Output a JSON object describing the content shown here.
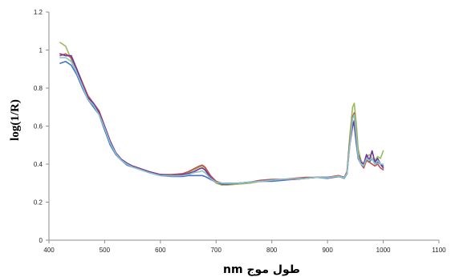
{
  "chart_data": {
    "type": "line",
    "title": "",
    "xlabel": "طول موج nm",
    "ylabel": "log(1/R)",
    "xlim": [
      400,
      1100
    ],
    "ylim": [
      0,
      1.2
    ],
    "x_ticks": [
      400,
      500,
      600,
      700,
      800,
      900,
      1000,
      1100
    ],
    "y_ticks": [
      0,
      0.2,
      0.4,
      0.6,
      0.8,
      1,
      1.2
    ],
    "x_tick_labels": [
      "400",
      "500",
      "600",
      "700",
      "800",
      "900",
      "1000",
      "1100"
    ],
    "y_tick_labels": [
      "0",
      "0.2",
      "0.4",
      "0.6",
      "0.8",
      "1",
      "1.2"
    ],
    "grid": false,
    "legend": "none",
    "series": [
      {
        "color": "#9bbb59",
        "x": [
          420,
          430,
          440,
          450,
          460,
          470,
          480,
          490,
          500,
          510,
          520,
          530,
          540,
          550,
          560,
          570,
          580,
          600,
          620,
          640,
          650,
          660,
          670,
          675,
          680,
          690,
          700,
          710,
          720,
          740,
          760,
          780,
          800,
          820,
          840,
          860,
          880,
          900,
          910,
          920,
          930,
          935,
          940,
          945,
          948,
          952,
          955,
          960,
          965,
          970,
          975,
          980,
          985,
          990,
          995,
          1000
        ],
        "y": [
          1.04,
          1.02,
          0.95,
          0.88,
          0.81,
          0.74,
          0.71,
          0.66,
          0.58,
          0.51,
          0.46,
          0.42,
          0.4,
          0.385,
          0.375,
          0.365,
          0.36,
          0.345,
          0.34,
          0.345,
          0.355,
          0.37,
          0.385,
          0.39,
          0.38,
          0.33,
          0.3,
          0.29,
          0.29,
          0.295,
          0.3,
          0.31,
          0.315,
          0.32,
          0.32,
          0.325,
          0.33,
          0.33,
          0.335,
          0.34,
          0.33,
          0.36,
          0.55,
          0.7,
          0.72,
          0.6,
          0.48,
          0.42,
          0.4,
          0.44,
          0.45,
          0.43,
          0.42,
          0.44,
          0.43,
          0.47
        ]
      },
      {
        "color": "#4472c4",
        "x": [
          420,
          430,
          440,
          450,
          460,
          470,
          480,
          490,
          500,
          510,
          520,
          530,
          540,
          550,
          560,
          570,
          580,
          600,
          620,
          640,
          650,
          660,
          670,
          675,
          680,
          690,
          700,
          710,
          720,
          740,
          760,
          780,
          800,
          820,
          840,
          860,
          880,
          900,
          910,
          920,
          930,
          935,
          940,
          945,
          948,
          952,
          955,
          960,
          965,
          970,
          975,
          980,
          985,
          990,
          995,
          1000
        ],
        "y": [
          0.93,
          0.94,
          0.92,
          0.87,
          0.8,
          0.74,
          0.7,
          0.66,
          0.58,
          0.5,
          0.45,
          0.42,
          0.395,
          0.385,
          0.375,
          0.365,
          0.355,
          0.34,
          0.335,
          0.335,
          0.34,
          0.34,
          0.34,
          0.34,
          0.335,
          0.32,
          0.305,
          0.3,
          0.3,
          0.3,
          0.305,
          0.31,
          0.31,
          0.315,
          0.32,
          0.325,
          0.33,
          0.325,
          0.33,
          0.335,
          0.325,
          0.35,
          0.52,
          0.62,
          0.6,
          0.5,
          0.43,
          0.4,
          0.39,
          0.42,
          0.41,
          0.43,
          0.4,
          0.41,
          0.4,
          0.39
        ]
      },
      {
        "color": "#c0504d",
        "x": [
          420,
          430,
          440,
          450,
          460,
          470,
          480,
          490,
          500,
          510,
          520,
          530,
          540,
          550,
          560,
          570,
          580,
          600,
          620,
          640,
          650,
          660,
          670,
          675,
          680,
          690,
          700,
          710,
          720,
          740,
          760,
          780,
          800,
          820,
          840,
          860,
          880,
          900,
          910,
          920,
          930,
          935,
          940,
          945,
          948,
          952,
          955,
          960,
          965,
          970,
          975,
          980,
          985,
          990,
          995,
          1000
        ],
        "y": [
          0.97,
          0.98,
          0.96,
          0.9,
          0.83,
          0.76,
          0.72,
          0.68,
          0.6,
          0.52,
          0.46,
          0.425,
          0.405,
          0.39,
          0.38,
          0.37,
          0.36,
          0.345,
          0.345,
          0.35,
          0.36,
          0.375,
          0.39,
          0.395,
          0.385,
          0.34,
          0.31,
          0.3,
          0.295,
          0.3,
          0.305,
          0.315,
          0.32,
          0.32,
          0.325,
          0.33,
          0.33,
          0.33,
          0.335,
          0.34,
          0.33,
          0.36,
          0.52,
          0.65,
          0.67,
          0.55,
          0.44,
          0.4,
          0.38,
          0.42,
          0.41,
          0.4,
          0.39,
          0.4,
          0.38,
          0.37
        ]
      },
      {
        "color": "#7030a0",
        "x": [
          420,
          430,
          440,
          450,
          460,
          470,
          480,
          490,
          500,
          510,
          520,
          530,
          540,
          550,
          560,
          570,
          580,
          600,
          620,
          640,
          650,
          660,
          670,
          675,
          680,
          690,
          700,
          710,
          720,
          740,
          760,
          780,
          800,
          820,
          840,
          860,
          880,
          900,
          910,
          920,
          930,
          935,
          940,
          945,
          948,
          952,
          955,
          960,
          965,
          970,
          975,
          980,
          985,
          990,
          995,
          1000
        ],
        "y": [
          0.98,
          0.97,
          0.97,
          0.9,
          0.82,
          0.75,
          0.72,
          0.67,
          0.6,
          0.52,
          0.46,
          0.425,
          0.405,
          0.39,
          0.38,
          0.37,
          0.36,
          0.345,
          0.34,
          0.345,
          0.35,
          0.36,
          0.375,
          0.38,
          0.37,
          0.33,
          0.305,
          0.295,
          0.295,
          0.3,
          0.305,
          0.31,
          0.315,
          0.32,
          0.32,
          0.325,
          0.33,
          0.33,
          0.33,
          0.335,
          0.33,
          0.35,
          0.5,
          0.6,
          0.63,
          0.52,
          0.45,
          0.41,
          0.4,
          0.45,
          0.42,
          0.47,
          0.41,
          0.43,
          0.4,
          0.38
        ]
      },
      {
        "color": "#8ac6c6",
        "x": [
          420,
          430,
          440,
          450,
          460,
          470,
          480,
          490,
          500,
          510,
          520,
          530,
          540,
          550,
          560,
          570,
          580,
          600,
          620,
          640,
          650,
          660,
          670,
          675,
          680,
          690,
          700,
          710,
          720,
          740,
          760,
          780,
          800,
          820,
          840,
          860,
          880,
          900,
          910,
          920,
          930,
          935,
          940,
          945,
          948,
          952,
          955,
          960,
          965,
          970,
          975,
          980,
          985,
          990,
          995,
          1000
        ],
        "y": [
          0.96,
          0.96,
          0.94,
          0.88,
          0.81,
          0.74,
          0.71,
          0.66,
          0.59,
          0.51,
          0.455,
          0.42,
          0.4,
          0.385,
          0.375,
          0.365,
          0.355,
          0.34,
          0.338,
          0.34,
          0.345,
          0.355,
          0.36,
          0.365,
          0.355,
          0.325,
          0.305,
          0.3,
          0.298,
          0.3,
          0.305,
          0.31,
          0.315,
          0.32,
          0.322,
          0.325,
          0.33,
          0.328,
          0.332,
          0.336,
          0.328,
          0.352,
          0.5,
          0.64,
          0.66,
          0.54,
          0.44,
          0.4,
          0.39,
          0.43,
          0.42,
          0.43,
          0.4,
          0.42,
          0.4,
          0.4
        ]
      }
    ]
  }
}
